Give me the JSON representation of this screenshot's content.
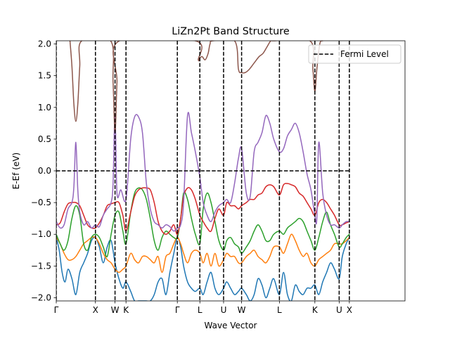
{
  "chart_data": {
    "type": "line",
    "title": "LiZn2Pt Band Structure",
    "xlabel": "Wave Vector",
    "ylabel": "E-Ef (eV)",
    "xlim": [
      0,
      3.56
    ],
    "ylim": [
      -2.05,
      2.05
    ],
    "grid": false,
    "legend_placement": "top-right",
    "kpoint_labels": [
      "Γ",
      "X",
      "W",
      "K",
      "Γ",
      "L",
      "U",
      "W",
      "L",
      "K",
      "U",
      "X"
    ],
    "kpoint_positions": [
      0.0,
      0.4,
      0.6,
      0.712,
      1.236,
      1.466,
      1.708,
      1.892,
      2.278,
      2.64,
      2.888,
      2.992
    ],
    "yticks": [
      -2.0,
      -1.5,
      -1.0,
      -0.5,
      0.0,
      0.5,
      1.0,
      1.5,
      2.0
    ],
    "ytick_labels": [
      "−2.0",
      "−1.5",
      "−1.0",
      "−0.5",
      "0.0",
      "0.5",
      "1.0",
      "1.5",
      "2.0"
    ],
    "fermi_level": {
      "name": "Fermi Level",
      "y": 0.0,
      "x_range": [
        0.0,
        2.992
      ],
      "color": "#000000",
      "style": "dashed"
    },
    "high_symmetry_line_color": "#000000",
    "series": [
      {
        "color": "#1f77b4",
        "x": [
          0.0,
          0.03,
          0.06,
          0.09,
          0.12,
          0.16,
          0.2,
          0.24,
          0.28,
          0.32,
          0.36,
          0.4,
          0.44,
          0.48,
          0.52,
          0.56,
          0.6,
          0.64,
          0.68,
          0.712,
          0.76,
          0.8,
          0.84,
          0.88,
          0.92,
          0.96,
          1.0,
          1.04,
          1.08,
          1.12,
          1.16,
          1.2,
          1.236,
          1.27,
          1.3,
          1.34,
          1.38,
          1.42,
          1.466,
          1.5,
          1.54,
          1.58,
          1.62,
          1.66,
          1.708,
          1.74,
          1.78,
          1.82,
          1.86,
          1.892,
          1.94,
          1.98,
          2.02,
          2.06,
          2.1,
          2.14,
          2.18,
          2.22,
          2.278,
          2.32,
          2.36,
          2.4,
          2.44,
          2.48,
          2.52,
          2.56,
          2.6,
          2.64,
          2.68,
          2.72,
          2.76,
          2.8,
          2.84,
          2.888,
          2.92,
          2.96,
          2.992
        ],
        "y": [
          -1.05,
          -1.25,
          -1.6,
          -1.75,
          -1.55,
          -1.7,
          -1.95,
          -1.6,
          -1.45,
          -1.3,
          -1.1,
          -1.05,
          -1.2,
          -1.45,
          -1.2,
          -1.1,
          -1.45,
          -1.7,
          -1.85,
          -1.75,
          -1.9,
          -2.05,
          -2.05,
          -2.05,
          -2.05,
          -2.05,
          -1.95,
          -1.75,
          -1.7,
          -1.95,
          -1.6,
          -1.3,
          -1.05,
          -1.2,
          -1.5,
          -1.75,
          -1.85,
          -1.9,
          -1.85,
          -1.95,
          -1.75,
          -1.6,
          -1.85,
          -1.95,
          -1.85,
          -1.75,
          -1.85,
          -1.95,
          -1.9,
          -1.85,
          -1.95,
          -2.05,
          -1.95,
          -1.7,
          -1.8,
          -2.0,
          -1.85,
          -1.7,
          -1.95,
          -1.6,
          -1.95,
          -2.05,
          -1.8,
          -1.9,
          -1.95,
          -1.85,
          -1.85,
          -1.8,
          -1.95,
          -1.75,
          -1.6,
          -1.45,
          -1.55,
          -1.7,
          -1.35,
          -1.15,
          -1.05
        ]
      },
      {
        "color": "#ff7f0e",
        "x": [
          0.0,
          0.04,
          0.08,
          0.12,
          0.16,
          0.2,
          0.24,
          0.28,
          0.32,
          0.36,
          0.4,
          0.44,
          0.48,
          0.52,
          0.56,
          0.6,
          0.64,
          0.68,
          0.712,
          0.76,
          0.8,
          0.84,
          0.88,
          0.92,
          0.96,
          1.0,
          1.04,
          1.08,
          1.12,
          1.16,
          1.2,
          1.236,
          1.27,
          1.3,
          1.34,
          1.38,
          1.42,
          1.466,
          1.5,
          1.54,
          1.58,
          1.62,
          1.66,
          1.708,
          1.74,
          1.78,
          1.82,
          1.86,
          1.892,
          1.94,
          1.98,
          2.02,
          2.06,
          2.1,
          2.14,
          2.18,
          2.22,
          2.278,
          2.32,
          2.36,
          2.4,
          2.44,
          2.48,
          2.52,
          2.56,
          2.6,
          2.64,
          2.68,
          2.72,
          2.76,
          2.8,
          2.84,
          2.888,
          2.92,
          2.96,
          2.992
        ],
        "y": [
          -1.05,
          -1.15,
          -1.3,
          -1.4,
          -1.4,
          -1.35,
          -1.25,
          -1.15,
          -1.1,
          -1.05,
          -1.05,
          -1.15,
          -1.3,
          -1.4,
          -1.45,
          -1.55,
          -1.6,
          -1.55,
          -1.5,
          -1.3,
          -1.4,
          -1.45,
          -1.35,
          -1.35,
          -1.4,
          -1.45,
          -1.35,
          -1.6,
          -1.35,
          -1.3,
          -1.15,
          -1.05,
          -1.15,
          -1.3,
          -1.45,
          -1.3,
          -1.25,
          -1.3,
          -1.45,
          -1.3,
          -1.5,
          -1.3,
          -1.5,
          -1.4,
          -1.3,
          -1.35,
          -1.35,
          -1.45,
          -1.45,
          -1.35,
          -1.3,
          -1.25,
          -1.35,
          -1.4,
          -1.45,
          -1.35,
          -1.2,
          -1.2,
          -1.3,
          -1.15,
          -1.0,
          -1.1,
          -1.25,
          -1.35,
          -1.3,
          -1.45,
          -1.5,
          -1.4,
          -1.35,
          -1.3,
          -1.25,
          -1.15,
          -1.15,
          -1.15,
          -1.1,
          -1.05
        ]
      },
      {
        "color": "#2ca02c",
        "x": [
          0.0,
          0.04,
          0.08,
          0.12,
          0.16,
          0.2,
          0.24,
          0.28,
          0.32,
          0.36,
          0.4,
          0.44,
          0.48,
          0.52,
          0.56,
          0.6,
          0.64,
          0.68,
          0.712,
          0.76,
          0.8,
          0.84,
          0.88,
          0.92,
          0.96,
          1.0,
          1.04,
          1.08,
          1.12,
          1.16,
          1.2,
          1.236,
          1.27,
          1.3,
          1.34,
          1.38,
          1.42,
          1.466,
          1.5,
          1.54,
          1.58,
          1.62,
          1.66,
          1.708,
          1.74,
          1.78,
          1.82,
          1.86,
          1.892,
          1.94,
          1.98,
          2.02,
          2.06,
          2.1,
          2.14,
          2.18,
          2.22,
          2.278,
          2.32,
          2.36,
          2.4,
          2.44,
          2.48,
          2.52,
          2.56,
          2.6,
          2.64,
          2.68,
          2.72,
          2.76,
          2.8,
          2.84,
          2.888,
          2.92,
          2.96,
          2.992
        ],
        "y": [
          -1.0,
          -1.15,
          -1.25,
          -1.1,
          -0.75,
          -0.55,
          -0.7,
          -1.15,
          -1.25,
          -1.05,
          -1.0,
          -1.05,
          -1.2,
          -1.35,
          -1.0,
          -0.7,
          -0.65,
          -0.95,
          -1.15,
          -0.65,
          -0.35,
          -0.27,
          -0.3,
          -0.45,
          -0.75,
          -1.1,
          -1.25,
          -1.05,
          -0.95,
          -1.0,
          -1.05,
          -1.05,
          -0.75,
          -0.35,
          -0.45,
          -0.75,
          -1.0,
          -1.15,
          -0.6,
          -0.35,
          -0.5,
          -0.8,
          -1.1,
          -1.25,
          -1.1,
          -1.05,
          -1.15,
          -1.2,
          -1.3,
          -1.2,
          -1.1,
          -0.95,
          -0.85,
          -0.95,
          -1.1,
          -1.1,
          -1.0,
          -0.95,
          -1.0,
          -0.9,
          -0.85,
          -0.8,
          -0.75,
          -0.8,
          -0.95,
          -1.1,
          -1.25,
          -1.05,
          -0.8,
          -0.65,
          -0.85,
          -1.0,
          -1.2,
          -1.15,
          -1.05,
          -1.0
        ]
      },
      {
        "color": "#d62728",
        "x": [
          0.0,
          0.04,
          0.08,
          0.12,
          0.16,
          0.2,
          0.24,
          0.28,
          0.32,
          0.36,
          0.4,
          0.44,
          0.48,
          0.52,
          0.56,
          0.6,
          0.64,
          0.68,
          0.712,
          0.76,
          0.8,
          0.84,
          0.88,
          0.92,
          0.96,
          1.0,
          1.04,
          1.08,
          1.12,
          1.16,
          1.2,
          1.236,
          1.27,
          1.3,
          1.34,
          1.38,
          1.42,
          1.466,
          1.5,
          1.54,
          1.58,
          1.62,
          1.66,
          1.708,
          1.74,
          1.78,
          1.82,
          1.86,
          1.892,
          1.94,
          1.98,
          2.02,
          2.06,
          2.1,
          2.14,
          2.18,
          2.22,
          2.278,
          2.32,
          2.36,
          2.4,
          2.44,
          2.48,
          2.52,
          2.56,
          2.6,
          2.64,
          2.68,
          2.72,
          2.76,
          2.8,
          2.84,
          2.888,
          2.92,
          2.96,
          2.992
        ],
        "y": [
          -0.85,
          -0.82,
          -0.65,
          -0.52,
          -0.5,
          -0.5,
          -0.55,
          -0.7,
          -0.85,
          -0.9,
          -0.9,
          -0.82,
          -0.7,
          -0.55,
          -0.52,
          -0.5,
          -0.5,
          -0.7,
          -0.95,
          -0.65,
          -0.4,
          -0.3,
          -0.27,
          -0.27,
          -0.3,
          -0.5,
          -0.8,
          -0.95,
          -1.0,
          -0.95,
          -0.85,
          -1.0,
          -0.75,
          -0.4,
          -0.27,
          -0.3,
          -0.45,
          -0.7,
          -0.8,
          -0.9,
          -0.95,
          -0.75,
          -0.6,
          -0.7,
          -0.5,
          -0.55,
          -0.55,
          -0.6,
          -0.55,
          -0.5,
          -0.45,
          -0.45,
          -0.38,
          -0.35,
          -0.25,
          -0.22,
          -0.25,
          -0.38,
          -0.22,
          -0.2,
          -0.22,
          -0.25,
          -0.35,
          -0.4,
          -0.5,
          -0.6,
          -0.7,
          -0.5,
          -0.45,
          -0.5,
          -0.6,
          -0.7,
          -0.85,
          -0.85,
          -0.82,
          -0.8
        ]
      },
      {
        "color": "#9467bd",
        "x": [
          0.0,
          0.04,
          0.08,
          0.12,
          0.16,
          0.18,
          0.2,
          0.22,
          0.24,
          0.28,
          0.32,
          0.36,
          0.4,
          0.44,
          0.48,
          0.52,
          0.56,
          0.58,
          0.6,
          0.62,
          0.66,
          0.712,
          0.76,
          0.8,
          0.84,
          0.88,
          0.92,
          0.96,
          1.0,
          1.04,
          1.08,
          1.12,
          1.16,
          1.2,
          1.236,
          1.27,
          1.3,
          1.34,
          1.38,
          1.42,
          1.466,
          1.5,
          1.54,
          1.58,
          1.62,
          1.66,
          1.708,
          1.74,
          1.78,
          1.82,
          1.86,
          1.892,
          1.94,
          1.98,
          2.02,
          2.06,
          2.1,
          2.14,
          2.18,
          2.22,
          2.278,
          2.32,
          2.36,
          2.4,
          2.44,
          2.48,
          2.52,
          2.56,
          2.6,
          2.64,
          2.66,
          2.68,
          2.72,
          2.76,
          2.8,
          2.84,
          2.888,
          2.92,
          2.96,
          2.992
        ],
        "y": [
          -0.8,
          -0.9,
          -0.85,
          -0.6,
          -0.5,
          -0.25,
          0.45,
          -0.3,
          -0.65,
          -0.85,
          -0.8,
          -0.9,
          -0.85,
          -0.88,
          -0.7,
          -0.6,
          -0.5,
          -0.2,
          0.9,
          -0.35,
          -0.3,
          -0.45,
          0.5,
          0.85,
          0.85,
          0.6,
          -0.2,
          -0.6,
          -0.8,
          -0.85,
          -0.9,
          -0.85,
          -0.88,
          -0.95,
          -0.9,
          -0.85,
          -0.5,
          0.87,
          0.6,
          0.3,
          -0.1,
          -0.5,
          -0.7,
          -0.8,
          -0.65,
          -0.55,
          -0.5,
          -0.45,
          -0.5,
          -0.2,
          0.2,
          0.35,
          -0.35,
          -0.4,
          0.3,
          0.45,
          0.6,
          0.87,
          0.75,
          0.5,
          0.3,
          0.35,
          0.55,
          0.65,
          0.75,
          0.6,
          0.3,
          -0.05,
          -0.3,
          -0.7,
          -0.75,
          0.45,
          -0.35,
          -0.7,
          -0.85,
          -0.85,
          -0.9,
          -0.85,
          -0.8,
          -0.8
        ]
      },
      {
        "color": "#8c564b",
        "x": [
          0.14,
          0.16,
          0.18,
          0.2,
          0.22,
          0.24,
          0.26,
          0.555,
          0.58,
          0.6,
          0.62,
          0.645,
          1.42,
          1.45,
          1.466,
          1.49,
          1.52,
          1.55,
          1.57,
          1.6,
          1.82,
          1.86,
          1.892,
          1.93,
          1.97,
          2.02,
          2.07,
          2.11,
          2.15,
          2.19,
          2.22,
          2.59,
          2.62,
          2.64,
          2.66,
          2.69,
          2.72
        ],
        "y": [
          2.05,
          1.65,
          1.05,
          0.78,
          1.05,
          1.65,
          2.05,
          2.05,
          1.4,
          0.6,
          1.4,
          2.05,
          2.05,
          1.75,
          1.78,
          1.8,
          1.75,
          1.85,
          2.0,
          2.05,
          2.05,
          1.6,
          1.55,
          1.55,
          1.6,
          1.7,
          1.8,
          1.85,
          1.95,
          2.05,
          2.05,
          2.05,
          1.6,
          1.25,
          1.6,
          2.0,
          2.05
        ]
      }
    ]
  }
}
